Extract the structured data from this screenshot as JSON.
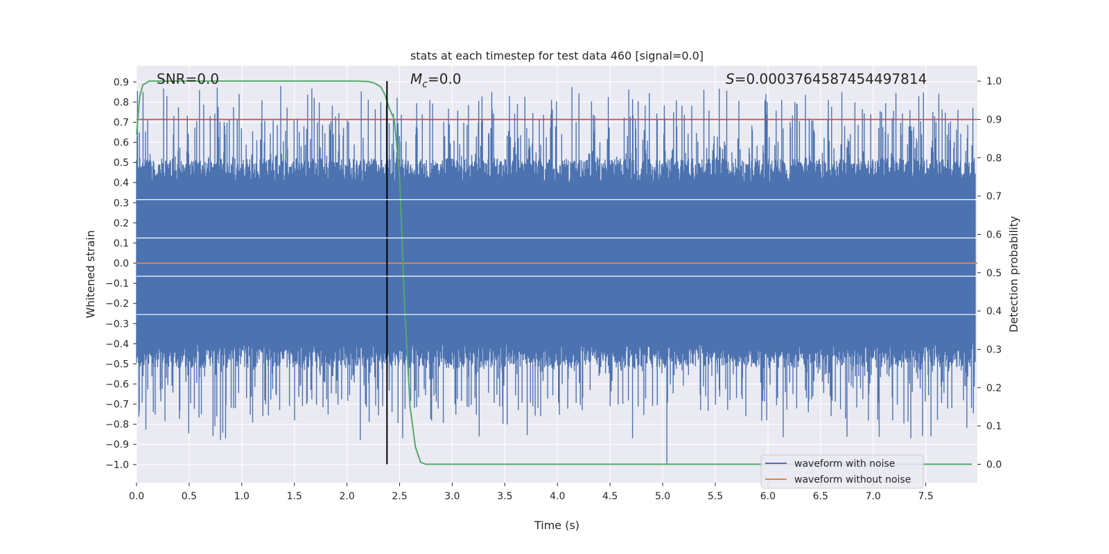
{
  "chart_data": {
    "type": "line",
    "title": "stats at each timestep for test data 460 [signal=0.0]",
    "xlabel": "Time (s)",
    "ylabel": "Whitened strain",
    "y2label": "Detection probability",
    "xlim": [
      0.0,
      7.99
    ],
    "ylim": [
      -1.09,
      0.98
    ],
    "y2lim": [
      -0.048,
      1.04
    ],
    "xticks": [
      0.0,
      0.5,
      1.0,
      1.5,
      2.0,
      2.5,
      3.0,
      3.5,
      4.0,
      4.5,
      5.0,
      5.5,
      6.0,
      6.5,
      7.0,
      7.5
    ],
    "xtick_labels": [
      "0.0",
      "0.5",
      "1.0",
      "1.5",
      "2.0",
      "2.5",
      "3.0",
      "3.5",
      "4.0",
      "4.5",
      "5.0",
      "5.5",
      "6.0",
      "6.5",
      "7.0",
      "7.5"
    ],
    "yticks": [
      0.9,
      0.8,
      0.7,
      0.6,
      0.5,
      0.4,
      0.3,
      0.2,
      0.1,
      0.0,
      -0.1,
      -0.2,
      -0.3,
      -0.4,
      -0.5,
      -0.6,
      -0.7,
      -0.8,
      -0.9,
      -1.0
    ],
    "ytick_labels": [
      "0.9",
      "0.8",
      "0.7",
      "0.6",
      "0.5",
      "0.4",
      "0.3",
      "0.2",
      "0.1",
      "0.0",
      "−0.1",
      "−0.2",
      "−0.3",
      "−0.4",
      "−0.5",
      "−0.6",
      "−0.7",
      "−0.8",
      "−0.9",
      "−1.0"
    ],
    "y2ticks": [
      1.0,
      0.9,
      0.8,
      0.7,
      0.6,
      0.5,
      0.4,
      0.3,
      0.2,
      0.1,
      0.0
    ],
    "y2tick_labels": [
      "1.0",
      "0.9",
      "0.8",
      "0.7",
      "0.6",
      "0.5",
      "0.4",
      "0.3",
      "0.2",
      "0.1",
      "0.0"
    ],
    "grid": true,
    "legend_position": "bottom-right",
    "annotations": {
      "snr": "SNR=0.0",
      "mc_symbol": "M",
      "mc_sub": "c",
      "mc_value": "=0.0",
      "s_symbol": "S",
      "s_value": "=0.0003764587454497814"
    },
    "series": [
      {
        "name": "waveform with noise",
        "color": "#4c72b0",
        "axis": "left",
        "kind": "noise",
        "seed": 460,
        "band": [
          -0.45,
          0.45
        ],
        "max": 0.88,
        "min": -1.0
      },
      {
        "name": "waveform without noise",
        "color": "#dd8452",
        "axis": "left",
        "kind": "constant",
        "value": 0.0
      },
      {
        "name": "",
        "color": "#55a868",
        "axis": "right",
        "kind": "line",
        "x": [
          0.0,
          0.03,
          0.06,
          0.12,
          0.2,
          0.5,
          1.0,
          1.5,
          2.0,
          2.1,
          2.2,
          2.26,
          2.32,
          2.36,
          2.4,
          2.45,
          2.5,
          2.55,
          2.6,
          2.65,
          2.7,
          2.75,
          2.8,
          3.0,
          4.0,
          5.0,
          6.0,
          7.0,
          7.94
        ],
        "y": [
          0.86,
          0.96,
          0.99,
          1.0,
          1.0,
          1.0,
          1.0,
          1.0,
          1.0,
          1.0,
          0.999,
          0.995,
          0.985,
          0.965,
          0.93,
          0.9,
          0.75,
          0.4,
          0.15,
          0.045,
          0.005,
          0.0,
          0.0,
          0.0,
          0.0,
          0.0,
          0.0,
          0.0,
          0.0
        ]
      },
      {
        "name": "",
        "color": "#c44e52",
        "axis": "right",
        "kind": "hline",
        "value": 0.9
      }
    ],
    "vline": {
      "x": 2.38,
      "color": "#000000",
      "y2_from": 0.0,
      "y2_to": 1.0
    }
  }
}
